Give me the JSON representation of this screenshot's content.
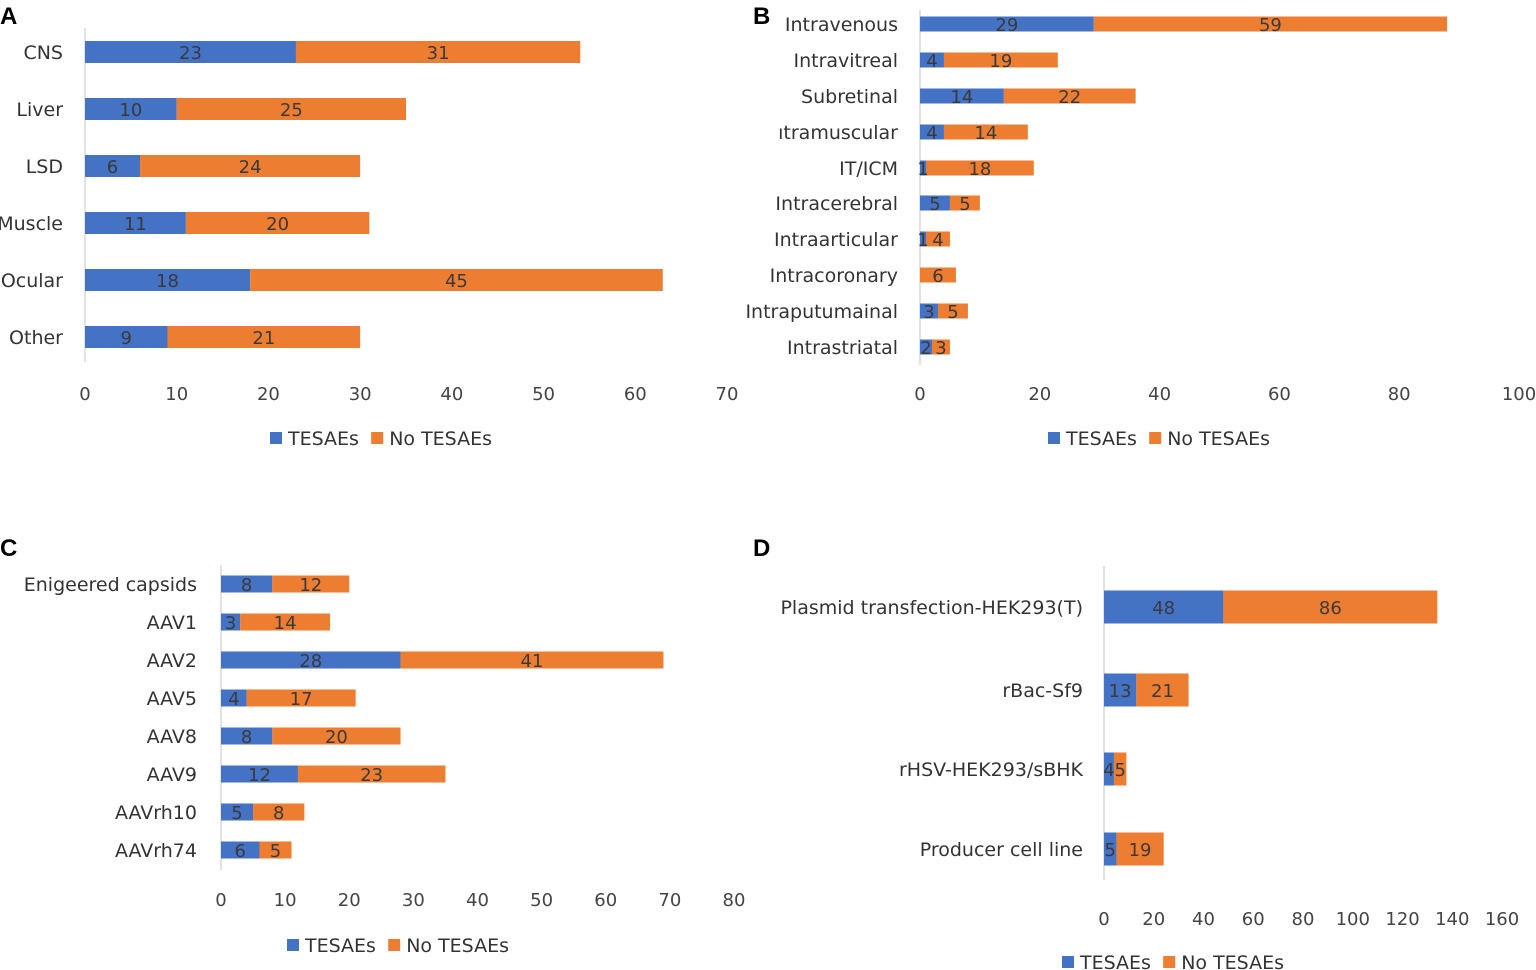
{
  "colors": {
    "tesaes": "#4472c4",
    "no_tesaes": "#ed7d31",
    "axis": "#d9d9d9"
  },
  "chart_data": [
    {
      "panel": "A",
      "type": "bar",
      "orientation": "horizontal",
      "stacked": true,
      "categories": [
        "CNS",
        "Liver",
        "LSD",
        "Muscle",
        "Ocular",
        "Other"
      ],
      "series": [
        {
          "name": "TESAEs",
          "values": [
            23,
            10,
            6,
            11,
            18,
            9
          ]
        },
        {
          "name": "No TESAEs",
          "values": [
            31,
            25,
            24,
            20,
            45,
            21
          ]
        }
      ],
      "xlim": [
        0,
        70
      ],
      "ticks": [
        "0",
        "10",
        "20",
        "30",
        "40",
        "50",
        "60",
        "70"
      ],
      "legend_position": "bottom"
    },
    {
      "panel": "B",
      "type": "bar",
      "orientation": "horizontal",
      "stacked": true,
      "categories": [
        "Intravenous",
        "Intravitreal",
        "Subretinal",
        "ıtramuscular",
        "IT/ICM",
        "Intracerebral",
        "Intraarticular",
        "Intracoronary",
        "Intraputumainal",
        "Intrastriatal"
      ],
      "series": [
        {
          "name": "TESAEs",
          "values": [
            29,
            4,
            14,
            4,
            1,
            5,
            1,
            0,
            3,
            2
          ]
        },
        {
          "name": "No TESAEs",
          "values": [
            59,
            19,
            22,
            14,
            18,
            5,
            4,
            6,
            5,
            3
          ]
        }
      ],
      "xlim": [
        0,
        100
      ],
      "ticks": [
        "0",
        "20",
        "40",
        "60",
        "80",
        "100"
      ],
      "legend_position": "bottom"
    },
    {
      "panel": "C",
      "type": "bar",
      "orientation": "horizontal",
      "stacked": true,
      "categories": [
        "Enigeered capsids",
        "AAV1",
        "AAV2",
        "AAV5",
        "AAV8",
        "AAV9",
        "AAVrh10",
        "AAVrh74"
      ],
      "series": [
        {
          "name": "TESAEs",
          "values": [
            8,
            3,
            28,
            4,
            8,
            12,
            5,
            6
          ]
        },
        {
          "name": "No TESAEs",
          "values": [
            12,
            14,
            41,
            17,
            20,
            23,
            8,
            5
          ]
        }
      ],
      "xlim": [
        0,
        80
      ],
      "ticks": [
        "0",
        "10",
        "20",
        "30",
        "40",
        "50",
        "60",
        "70",
        "80"
      ],
      "legend_position": "bottom"
    },
    {
      "panel": "D",
      "type": "bar",
      "orientation": "horizontal",
      "stacked": true,
      "categories": [
        "Plasmid transfection-HEK293(T)",
        "rBac-Sf9",
        "rHSV-HEK293/sBHK",
        "Producer cell line"
      ],
      "series": [
        {
          "name": "TESAEs",
          "values": [
            48,
            13,
            4,
            5
          ]
        },
        {
          "name": "No TESAEs",
          "values": [
            86,
            21,
            5,
            19
          ]
        }
      ],
      "xlim": [
        0,
        160
      ],
      "ticks": [
        "0",
        "20",
        "40",
        "60",
        "80",
        "100",
        "120",
        "140",
        "160"
      ],
      "legend_position": "bottom"
    }
  ]
}
